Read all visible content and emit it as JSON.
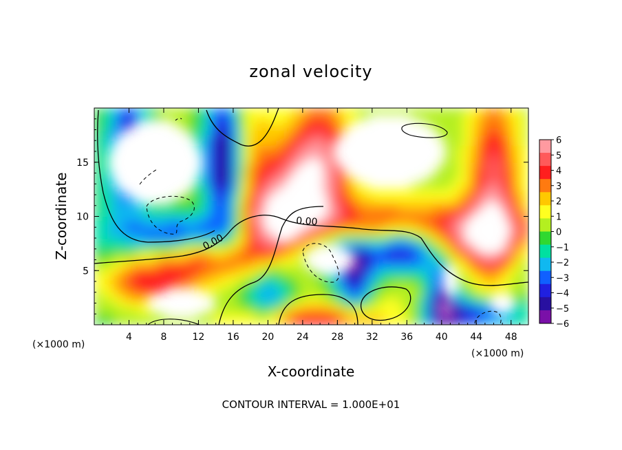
{
  "chart_data": {
    "type": "heatmap",
    "title": "zonal velocity",
    "xlabel": "X-coordinate",
    "ylabel": "Z-coordinate",
    "x_unit": "(×1000 m)",
    "x_unit_right": "(×1000 m)",
    "xlim": [
      0,
      50
    ],
    "ylim": [
      0,
      20
    ],
    "x_ticks": [
      4,
      8,
      12,
      16,
      20,
      24,
      28,
      32,
      36,
      40,
      44,
      48
    ],
    "y_ticks": [
      5,
      10,
      15
    ],
    "colorbar": {
      "labels": [
        "6",
        "5",
        "4",
        "3",
        "2",
        "1",
        "0",
        "−1",
        "−2",
        "−3",
        "−4",
        "−5",
        "−6"
      ],
      "colors": [
        "#ff9aa0",
        "#ff5a5a",
        "#ff1e1e",
        "#ff7a10",
        "#ffc800",
        "#ffff20",
        "#b4ef20",
        "#30d830",
        "#00e0a0",
        "#10b8f0",
        "#1060ff",
        "#2020e0",
        "#2810a0",
        "#7a10a8"
      ]
    },
    "contour_labels": [
      "0.00",
      "0.00"
    ],
    "footer": "CONTOUR INTERVAL = 1.000E+01"
  }
}
